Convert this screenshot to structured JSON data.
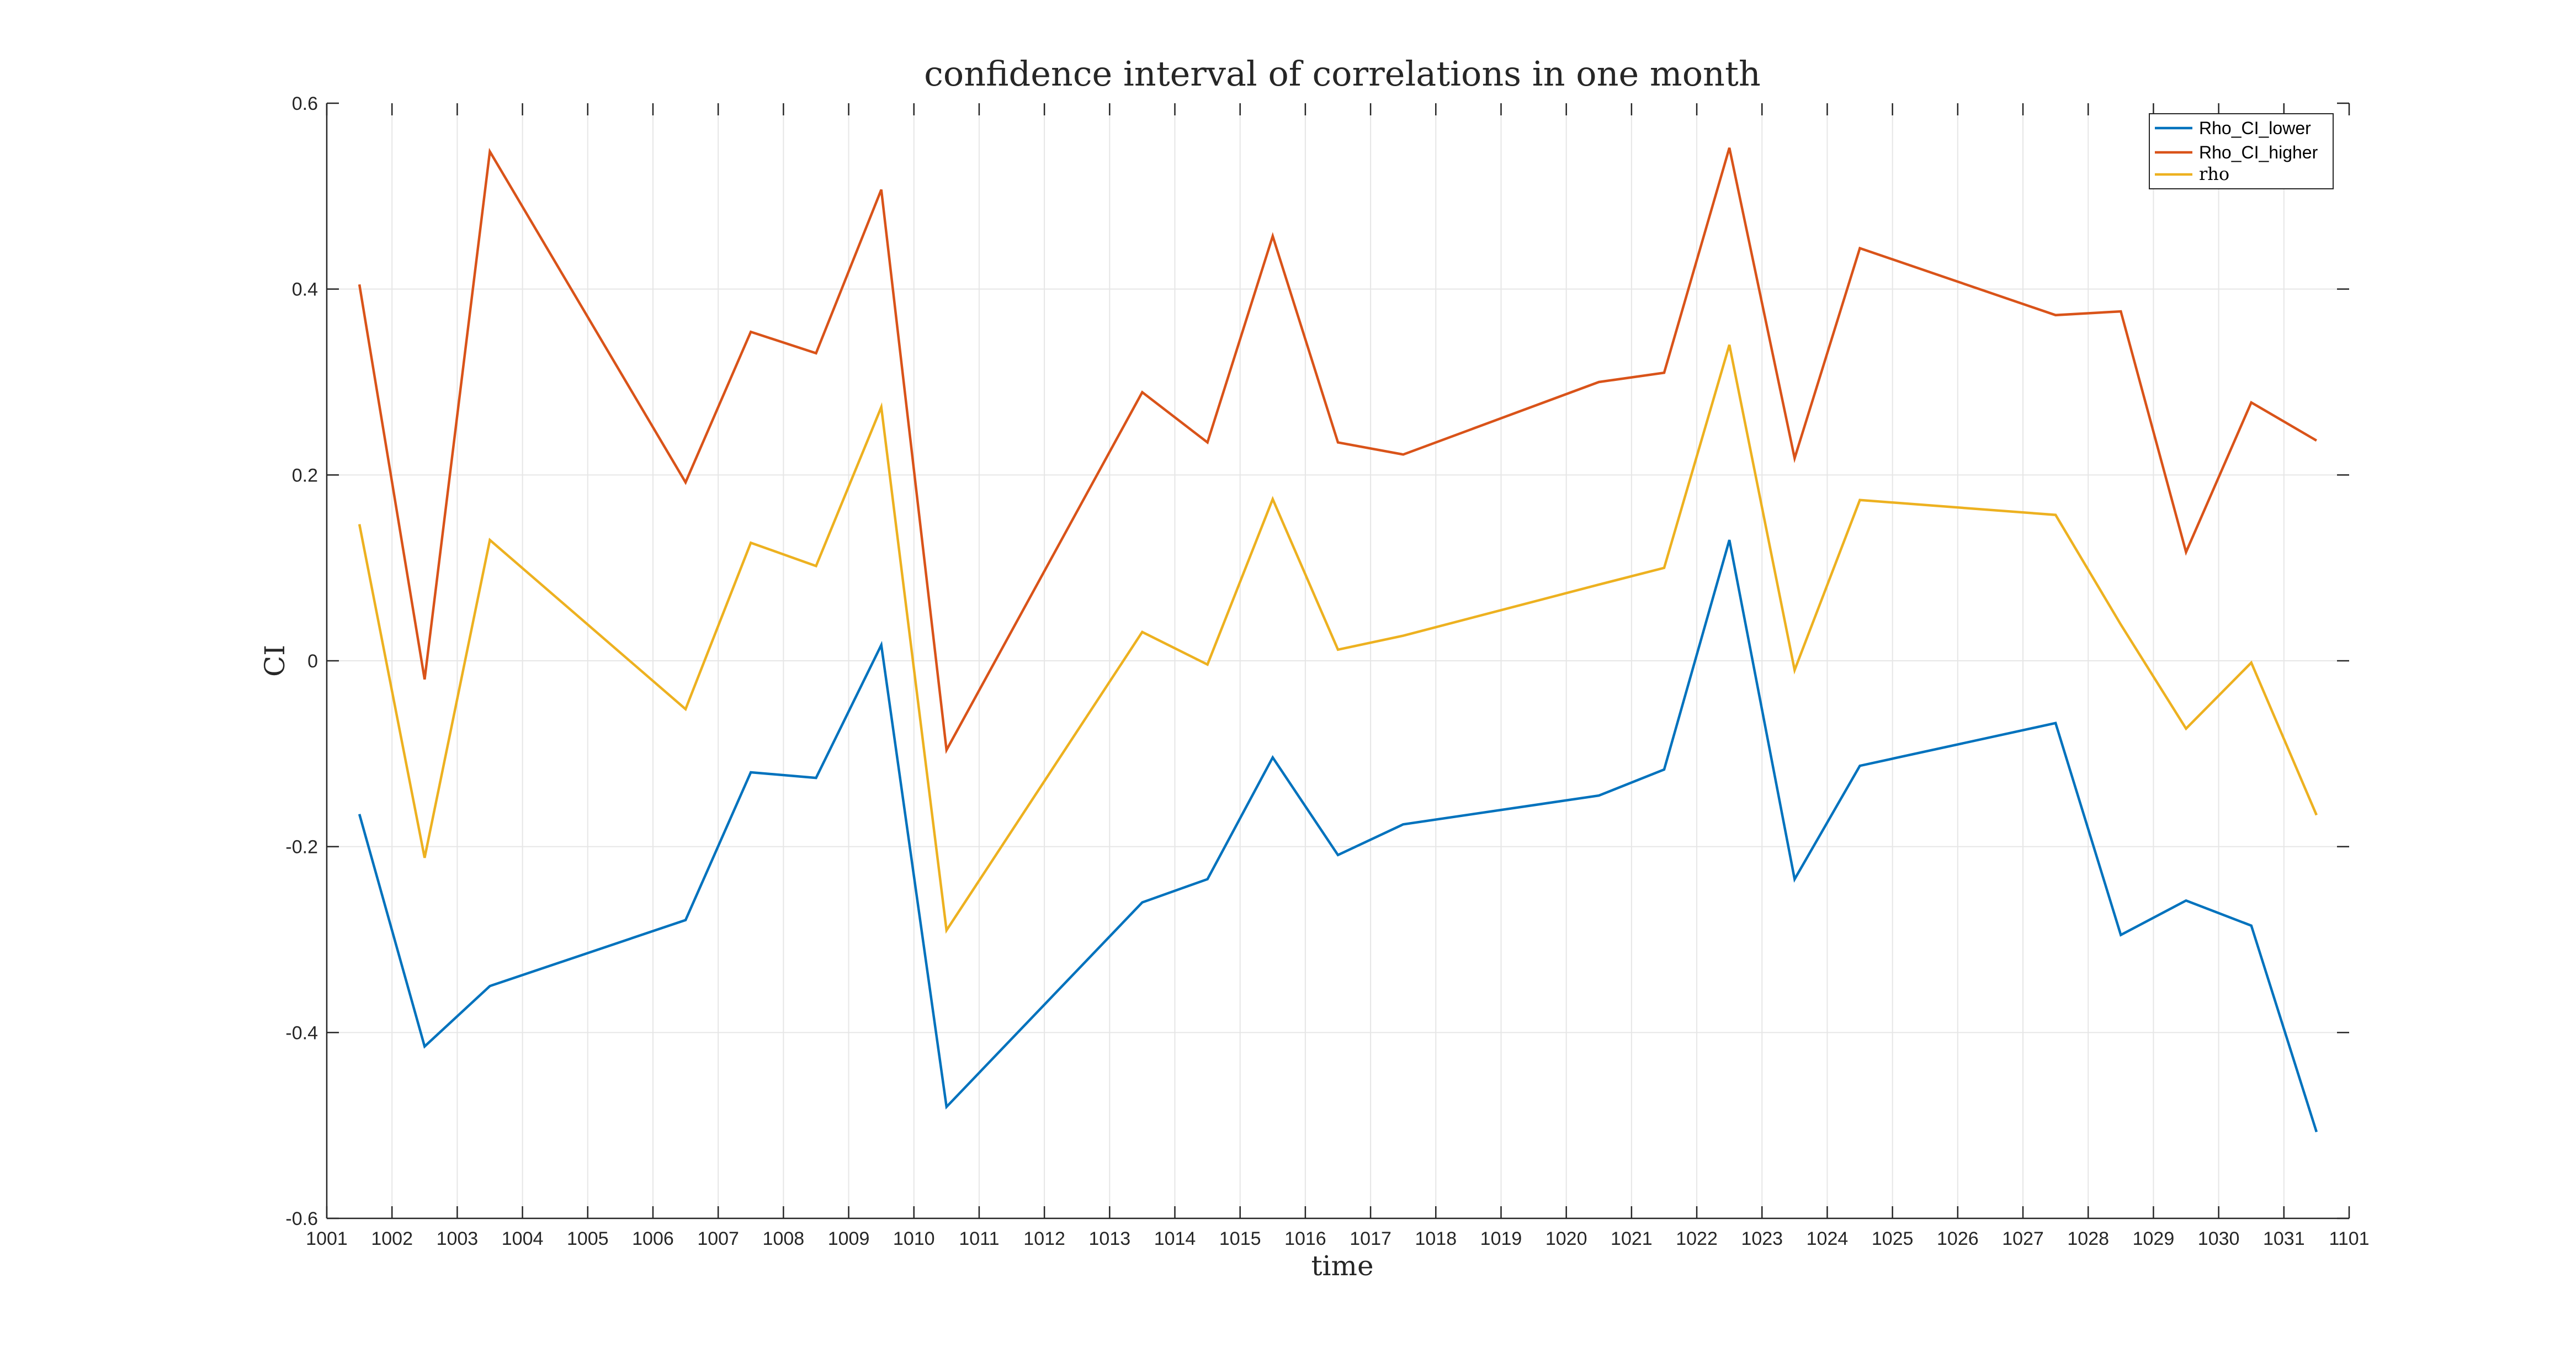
{
  "chart_data": {
    "type": "line",
    "title": "confidence interval of correlations in one month",
    "xlabel": "time",
    "ylabel": "CI",
    "xlim": [
      1001,
      1101
    ],
    "ylim": [
      -0.6,
      0.6
    ],
    "grid": true,
    "legend_position": "top-right",
    "x_tick_labels": [
      "1001",
      "1002",
      "1003",
      "1004",
      "1005",
      "1006",
      "1007",
      "1008",
      "1009",
      "1010",
      "1011",
      "1012",
      "1013",
      "1014",
      "1015",
      "1016",
      "1017",
      "1018",
      "1019",
      "1020",
      "1021",
      "1022",
      "1023",
      "1024",
      "1025",
      "1026",
      "1027",
      "1028",
      "1029",
      "1030",
      "1031",
      "1101"
    ],
    "y_ticks": [
      -0.6,
      -0.4,
      -0.2,
      0,
      0.2,
      0.4,
      0.6
    ],
    "y_tick_labels": [
      "-0.6",
      "-0.4",
      "-0.2",
      "0",
      "0.2",
      "0.4",
      "0.6"
    ],
    "x_index": [
      0.5,
      1.5,
      2.5,
      5.5,
      6.5,
      7.5,
      8.5,
      9.5,
      12.5,
      13.5,
      14.5,
      15.5,
      16.5,
      19.5,
      20.5,
      21.5,
      22.5,
      23.5,
      26.5,
      27.5,
      28.5,
      29.5,
      30.5
    ],
    "series": [
      {
        "name": "Rho_CI_lower",
        "color": "#0072BD",
        "values": [
          -0.165,
          -0.415,
          -0.35,
          -0.279,
          -0.12,
          -0.126,
          0.017,
          -0.48,
          -0.26,
          -0.235,
          -0.104,
          -0.209,
          -0.176,
          -0.145,
          -0.117,
          0.13,
          -0.235,
          -0.113,
          -0.067,
          -0.295,
          -0.258,
          -0.285,
          -0.507
        ]
      },
      {
        "name": "Rho_CI_higher",
        "color": "#D95319",
        "values": [
          0.405,
          -0.02,
          0.548,
          0.192,
          0.354,
          0.331,
          0.507,
          -0.096,
          0.289,
          0.235,
          0.457,
          0.235,
          0.222,
          0.3,
          0.31,
          0.552,
          0.218,
          0.444,
          0.372,
          0.376,
          0.117,
          0.278,
          0.237
        ]
      },
      {
        "name": "rho",
        "color": "#EDB120",
        "values": [
          0.147,
          -0.212,
          0.13,
          -0.052,
          0.127,
          0.102,
          0.273,
          -0.29,
          0.031,
          -0.004,
          0.174,
          0.012,
          0.027,
          0.082,
          0.1,
          0.34,
          -0.01,
          0.173,
          0.157,
          0.039,
          -0.073,
          -0.002,
          -0.166
        ]
      }
    ]
  }
}
